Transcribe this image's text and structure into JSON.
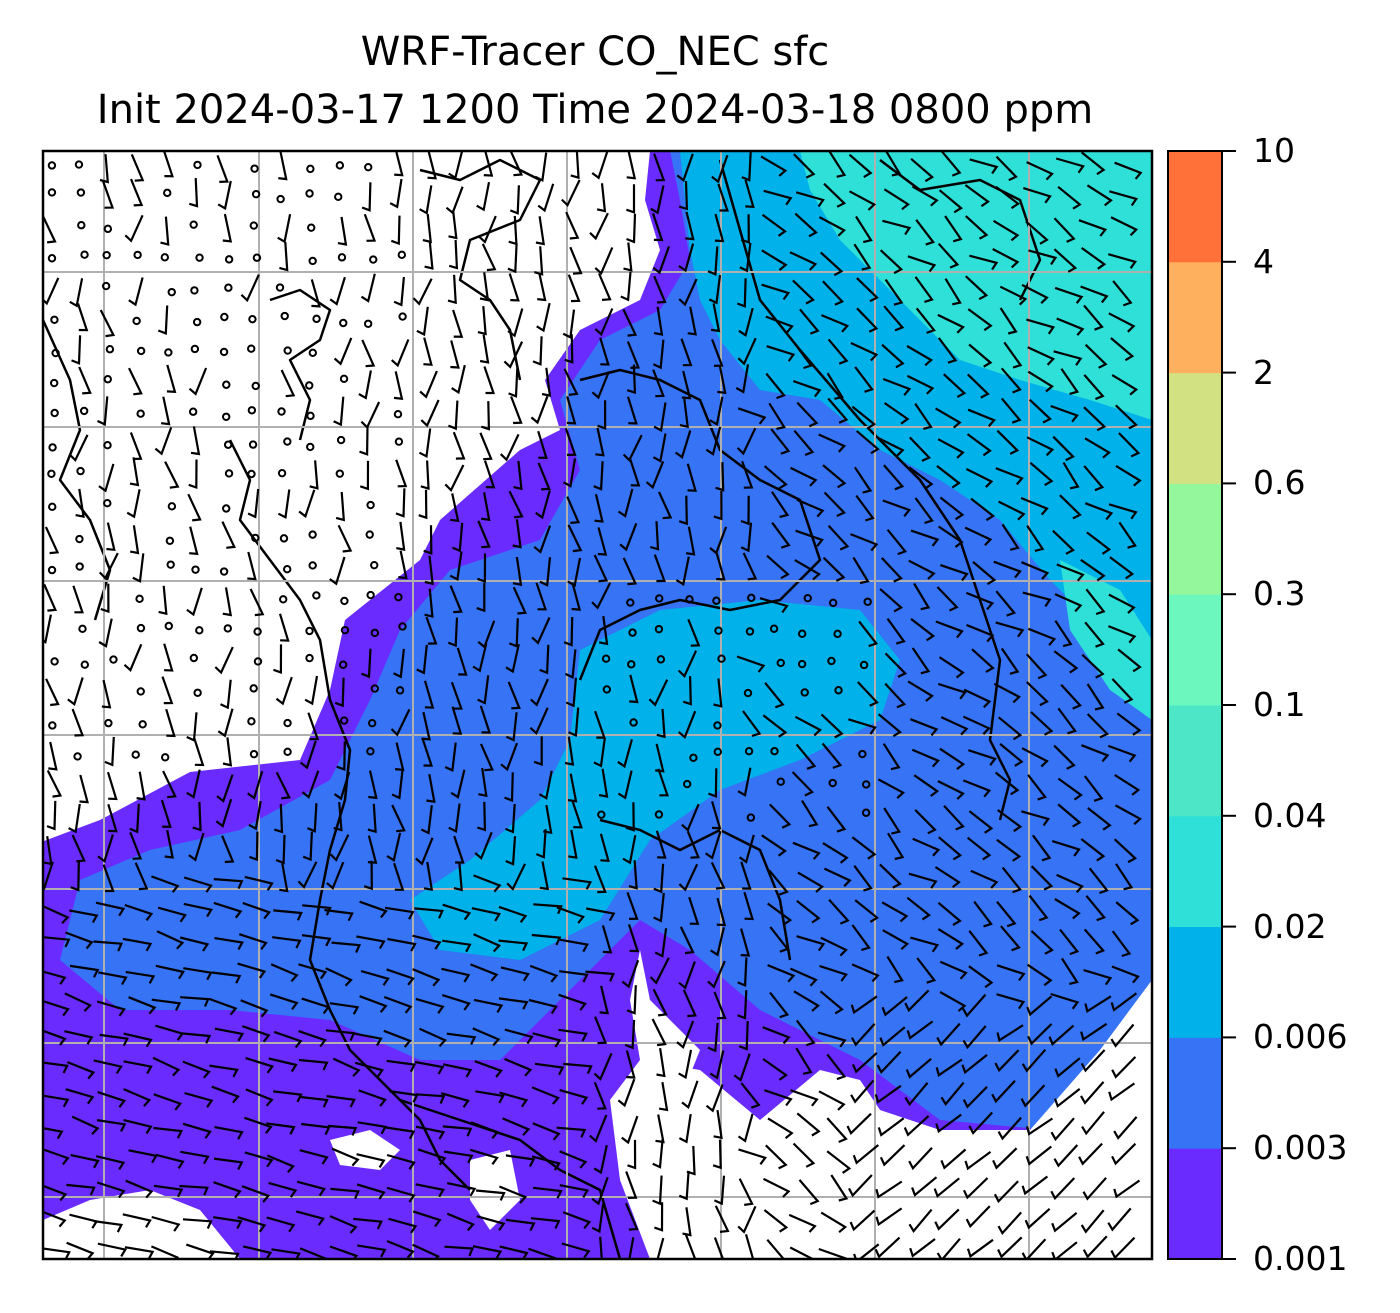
{
  "title": {
    "line1": "WRF-Tracer CO_NEC sfc",
    "line2": "Init 2024-03-17 1200 Time 2024-03-18 0800 ppm"
  },
  "colorbar": {
    "levels": [
      "0.001",
      "0.003",
      "0.006",
      "0.02",
      "0.04",
      "0.1",
      "0.3",
      "0.6",
      "2",
      "4",
      "10"
    ],
    "colors": [
      "#6a2bff",
      "#3673f5",
      "#00b1ea",
      "#2fe0d8",
      "#4de6c6",
      "#6cf7be",
      "#95f79b",
      "#d2e181",
      "#ffb05e",
      "#ff7138",
      "#ff2a17"
    ]
  },
  "fill_colors": {
    "below_min": "#ffffff",
    "band_0001": "#6a2bff",
    "band_0003": "#3673f5",
    "band_0006": "#00b1ea",
    "band_002": "#2fe0d8"
  },
  "map_style": {
    "gridlines": "on",
    "grid_color": "#b0b0b0",
    "coastline_color": "#000000",
    "wind_barb_color": "#000000"
  }
}
